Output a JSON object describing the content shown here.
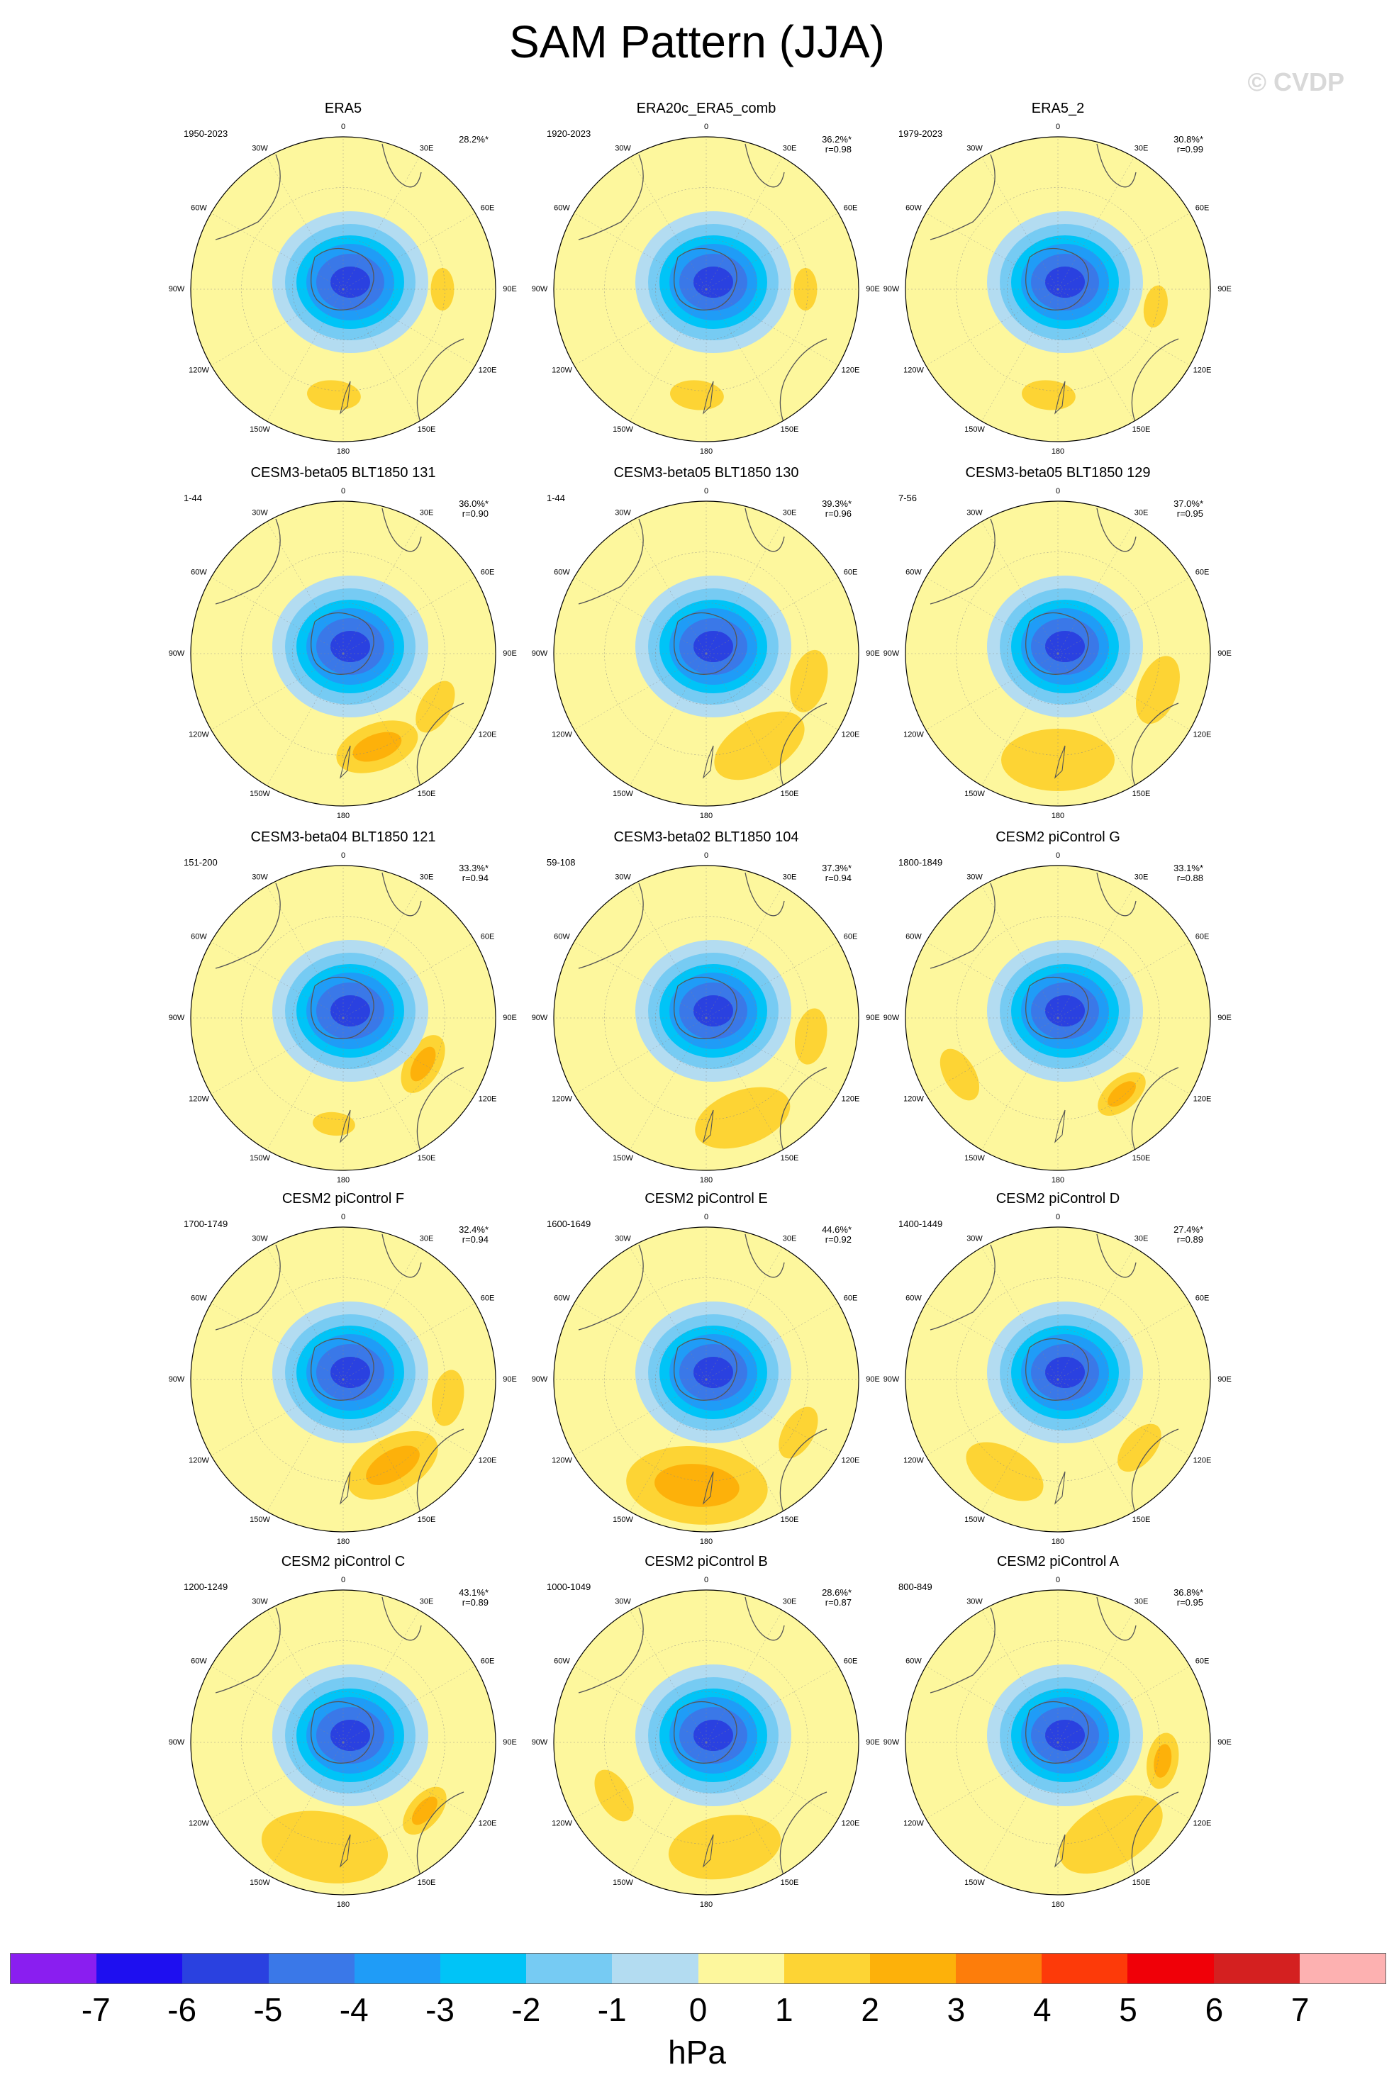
{
  "title": "SAM Pattern (JJA)",
  "watermark": "© CVDP",
  "units": "hPa",
  "lon_labels": [
    "0",
    "30E",
    "60E",
    "90E",
    "120E",
    "150E",
    "180",
    "150W",
    "120W",
    "90W",
    "60W",
    "30W"
  ],
  "colors": {
    "levels": [
      "#8a1ef0",
      "#1e0ff0",
      "#2a41e0",
      "#3a78e8",
      "#1f9cf7",
      "#00c4f7",
      "#76cbf3",
      "#b3dcf1",
      "#fdf79d",
      "#fdd434",
      "#fdb10a",
      "#fd7d0b",
      "#fd3a09",
      "#f00008",
      "#d42020",
      "#fdb1b1"
    ],
    "base": "#fdf79d"
  },
  "colorbar_ticks": [
    "-7",
    "-6",
    "-5",
    "-4",
    "-3",
    "-2",
    "-1",
    "0",
    "1",
    "2",
    "3",
    "4",
    "5",
    "6",
    "7"
  ],
  "panels": [
    {
      "title": "ERA5",
      "years": "1950-2023",
      "pct": "28.2%*",
      "r": ""
    },
    {
      "title": "ERA20c_ERA5_comb",
      "years": "1920-2023",
      "pct": "36.2%*",
      "r": "r=0.98"
    },
    {
      "title": "ERA5_2",
      "years": "1979-2023",
      "pct": "30.8%*",
      "r": "r=0.99"
    },
    {
      "title": "CESM3-beta05 BLT1850 131",
      "years": "1-44",
      "pct": "36.0%*",
      "r": "r=0.90"
    },
    {
      "title": "CESM3-beta05 BLT1850 130",
      "years": "1-44",
      "pct": "39.3%*",
      "r": "r=0.96"
    },
    {
      "title": "CESM3-beta05 BLT1850 129",
      "years": "7-56",
      "pct": "37.0%*",
      "r": "r=0.95"
    },
    {
      "title": "CESM3-beta04 BLT1850 121",
      "years": "151-200",
      "pct": "33.3%*",
      "r": "r=0.94"
    },
    {
      "title": "CESM3-beta02 BLT1850 104",
      "years": "59-108",
      "pct": "37.3%*",
      "r": "r=0.94"
    },
    {
      "title": "CESM2 piControl G",
      "years": "1800-1849",
      "pct": "33.1%*",
      "r": "r=0.88"
    },
    {
      "title": "CESM2 piControl F",
      "years": "1700-1749",
      "pct": "32.4%*",
      "r": "r=0.94"
    },
    {
      "title": "CESM2 piControl E",
      "years": "1600-1649",
      "pct": "44.6%*",
      "r": "r=0.92"
    },
    {
      "title": "CESM2 piControl D",
      "years": "1400-1449",
      "pct": "27.4%*",
      "r": "r=0.89"
    },
    {
      "title": "CESM2 piControl C",
      "years": "1200-1249",
      "pct": "43.1%*",
      "r": "r=0.89"
    },
    {
      "title": "CESM2 piControl B",
      "years": "1000-1049",
      "pct": "28.6%*",
      "r": "r=0.87"
    },
    {
      "title": "CESM2 piControl A",
      "years": "800-849",
      "pct": "36.8%*",
      "r": "r=0.95"
    }
  ]
}
